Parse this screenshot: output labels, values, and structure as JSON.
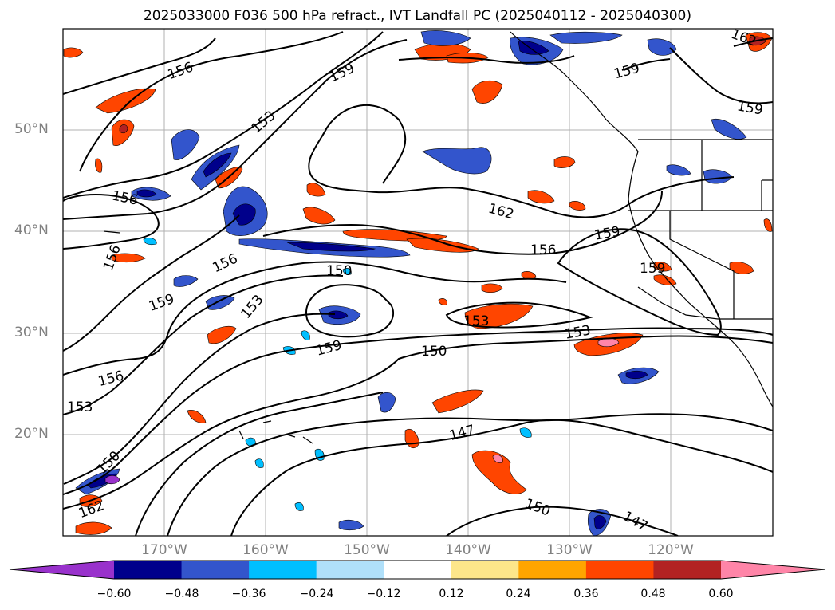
{
  "title": "2025033000 F036 500 hPa refract., IVT Landfall PC (2025040112 - 2025040300)",
  "lat_labels": [
    "50°N",
    "40°N",
    "30°N",
    "20°N"
  ],
  "lon_labels": [
    "170°W",
    "160°W",
    "150°W",
    "140°W",
    "130°W",
    "120°W"
  ],
  "contour_labels": [
    "156",
    "159",
    "153",
    "162",
    "156",
    "159",
    "156",
    "159",
    "162",
    "159",
    "156",
    "153",
    "156",
    "159",
    "153",
    "150",
    "153",
    "159",
    "150",
    "156",
    "153",
    "147",
    "150",
    "162",
    "150",
    "147",
    "159"
  ],
  "colorbar": {
    "ticks": [
      "−0.60",
      "−0.48",
      "−0.36",
      "−0.24",
      "−0.12",
      "0.12",
      "0.24",
      "0.36",
      "0.48",
      "0.60"
    ],
    "colors": [
      "#9932cc",
      "#00008b",
      "#3355cc",
      "#00bfff",
      "#b0e0fa",
      "#ffffff",
      "#fde68a",
      "#ffa500",
      "#ff4500",
      "#b22222",
      "#ff85a8"
    ]
  }
}
